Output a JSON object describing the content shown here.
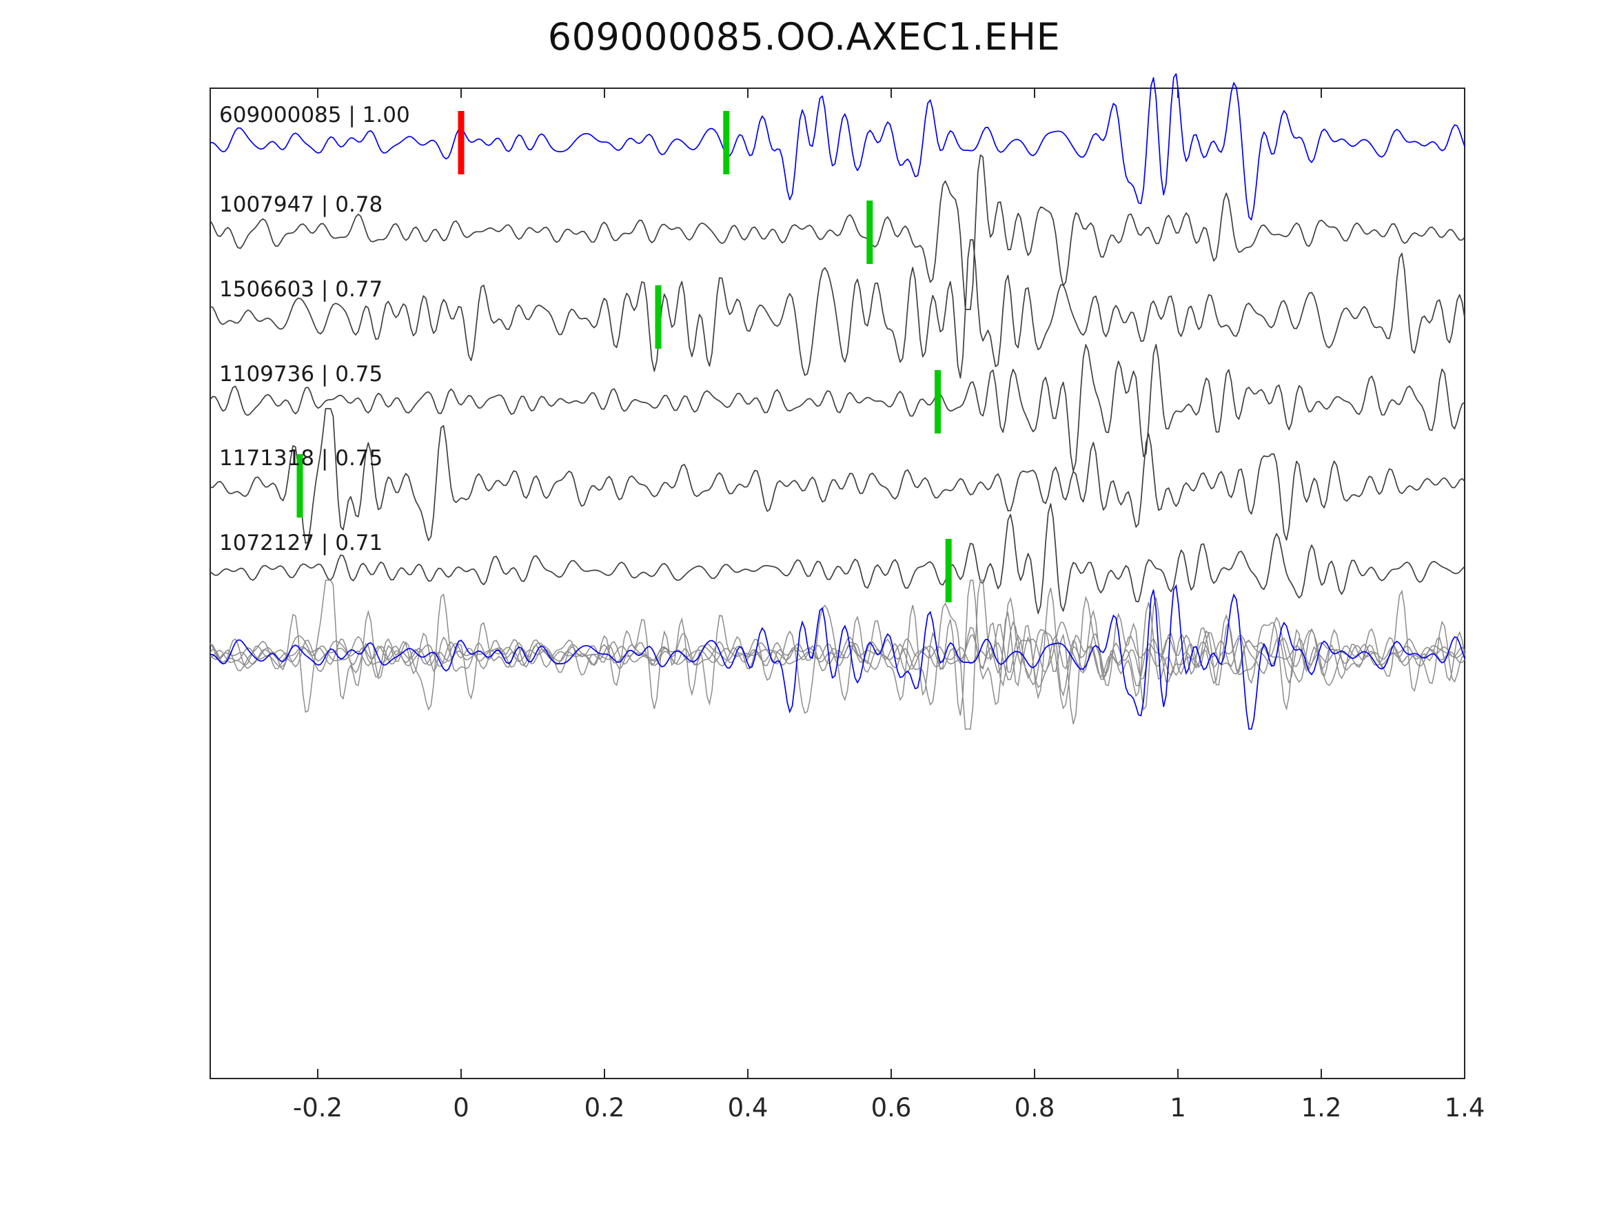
{
  "title": "609000085.OO.AXEC1.EHE",
  "chart_data": {
    "type": "line",
    "title": "609000085.OO.AXEC1.EHE",
    "xlabel": "",
    "ylabel": "",
    "xlim": [
      -0.35,
      1.4
    ],
    "x_ticks": [
      -0.2,
      0,
      0.2,
      0.4,
      0.6,
      0.8,
      1,
      1.2,
      1.4
    ],
    "x_tick_labels": [
      "-0.2",
      "0",
      "0.2",
      "0.4",
      "0.6",
      "0.8",
      "1",
      "1.2",
      "1.4"
    ],
    "grid": false,
    "legend": false,
    "axis_color": "#262626",
    "tick_label_color": "#262626",
    "trace_label_color": "#1a1a1a",
    "marker_colors": {
      "pick": "#00cc00",
      "reference": "#ff0000"
    },
    "traces": [
      {
        "id": "609000085",
        "correlation": 1.0,
        "label": "609000085 | 1.00",
        "color": "#0000ee",
        "is_reference": true,
        "reference_marker_time": 0.0,
        "pick_marker_time": 0.37,
        "waveform_synth": {
          "seed": 7,
          "noise_amp": 12,
          "bursts": [
            {
              "t": 0.5,
              "w": 0.05,
              "amp": 52
            },
            {
              "t": 0.63,
              "w": 0.05,
              "amp": 22
            },
            {
              "t": 0.98,
              "w": 0.07,
              "amp": 66
            },
            {
              "t": 1.12,
              "w": 0.05,
              "amp": 34
            }
          ]
        }
      },
      {
        "id": "1007947",
        "correlation": 0.78,
        "label": "1007947 | 0.78",
        "color": "#3f3f3f",
        "is_reference": false,
        "reference_marker_time": null,
        "pick_marker_time": 0.57,
        "waveform_synth": {
          "seed": 13,
          "noise_amp": 13,
          "bursts": [
            {
              "t": 0.7,
              "w": 0.06,
              "amp": 56
            },
            {
              "t": 0.86,
              "w": 0.06,
              "amp": 30
            },
            {
              "t": 1.05,
              "w": 0.05,
              "amp": 20
            }
          ]
        }
      },
      {
        "id": "1506603",
        "correlation": 0.77,
        "label": "1506603 | 0.77",
        "color": "#3f3f3f",
        "is_reference": false,
        "reference_marker_time": null,
        "pick_marker_time": 0.275,
        "waveform_synth": {
          "seed": 21,
          "noise_amp": 22,
          "bursts": [
            {
              "t": 0.33,
              "w": 0.05,
              "amp": 40
            },
            {
              "t": 0.52,
              "w": 0.06,
              "amp": 46
            },
            {
              "t": 0.74,
              "w": 0.07,
              "amp": 34
            },
            {
              "t": 1.25,
              "w": 0.06,
              "amp": 24
            }
          ]
        }
      },
      {
        "id": "1109736",
        "correlation": 0.75,
        "label": "1109736 | 0.75",
        "color": "#3f3f3f",
        "is_reference": false,
        "reference_marker_time": null,
        "pick_marker_time": 0.665,
        "waveform_synth": {
          "seed": 29,
          "noise_amp": 13,
          "bursts": [
            {
              "t": 0.78,
              "w": 0.05,
              "amp": 32
            },
            {
              "t": 0.92,
              "w": 0.06,
              "amp": 56
            },
            {
              "t": 1.1,
              "w": 0.05,
              "amp": 30
            },
            {
              "t": 1.35,
              "w": 0.04,
              "amp": 20
            }
          ]
        }
      },
      {
        "id": "1171318",
        "correlation": 0.75,
        "label": "1171318 | 0.75",
        "color": "#3f3f3f",
        "is_reference": false,
        "reference_marker_time": null,
        "pick_marker_time": -0.225,
        "waveform_synth": {
          "seed": 35,
          "noise_amp": 14,
          "bursts": [
            {
              "t": -0.17,
              "w": 0.04,
              "amp": 56
            },
            {
              "t": -0.05,
              "w": 0.04,
              "amp": 30
            },
            {
              "t": 0.93,
              "w": 0.06,
              "amp": 32
            },
            {
              "t": 1.15,
              "w": 0.05,
              "amp": 22
            }
          ]
        }
      },
      {
        "id": "1072127",
        "correlation": 0.71,
        "label": "1072127 | 0.71",
        "color": "#3f3f3f",
        "is_reference": false,
        "reference_marker_time": null,
        "pick_marker_time": 0.68,
        "waveform_synth": {
          "seed": 41,
          "noise_amp": 13,
          "bursts": [
            {
              "t": 0.78,
              "w": 0.05,
              "amp": 52
            },
            {
              "t": 0.95,
              "w": 0.06,
              "amp": 42
            },
            {
              "t": 1.15,
              "w": 0.05,
              "amp": 24
            }
          ]
        }
      }
    ],
    "overlay": {
      "description": "All six aligned traces overlaid; matched traces in gray, reference trace in blue",
      "gray_color": "#8c8c8c",
      "reference_color": "#0000ee",
      "amplitude_scale": 1.0
    }
  }
}
